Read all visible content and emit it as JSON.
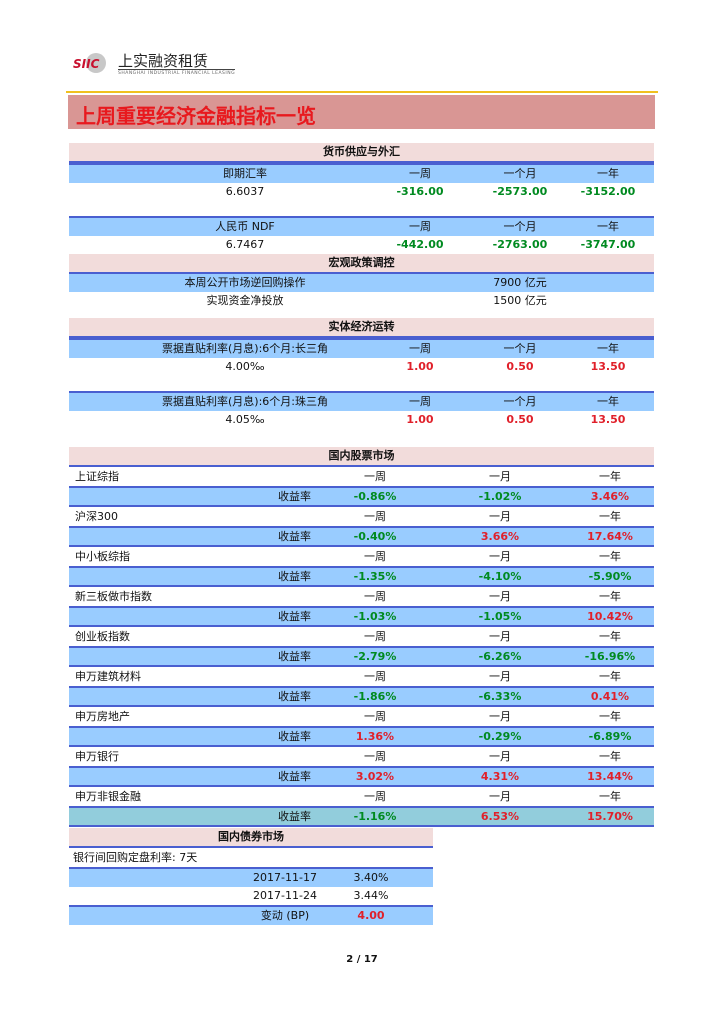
{
  "logo": {
    "mark": "SIIC",
    "name_cn": "上实融资租赁",
    "name_en": "SHANGHAI INDUSTRIAL FINANCIAL LEASING"
  },
  "title": "上周重要经济金融指标一览",
  "colors": {
    "banner": "#d99694",
    "title": "#e8191e",
    "section_header": "#f2dcdb",
    "row_blue": "#99ccff",
    "last_row": "#92cddc",
    "up": "#e0202a",
    "down": "#008a20"
  },
  "money": {
    "header": "货币供应与外汇",
    "blocks": [
      {
        "label": "即期汇率",
        "cols": [
          "一周",
          "一个月",
          "一年"
        ],
        "value": "6.6037",
        "changes": [
          "-316.00",
          "-2573.00",
          "-3152.00"
        ],
        "colors": [
          "g",
          "g",
          "g"
        ]
      },
      {
        "label": "人民币 NDF",
        "cols": [
          "一周",
          "一个月",
          "一年"
        ],
        "value": "6.7467",
        "changes": [
          "-442.00",
          "-2763.00",
          "-3747.00"
        ],
        "colors": [
          "g",
          "g",
          "g"
        ]
      }
    ]
  },
  "macro": {
    "header": "宏观政策调控",
    "rows": [
      {
        "label": "本周公开市场逆回购操作",
        "value": "7900 亿元"
      },
      {
        "label": "实现资金净投放",
        "value": "1500 亿元"
      }
    ]
  },
  "real": {
    "header": "实体经济运转",
    "blocks": [
      {
        "label": "票据直贴利率(月息):6个月:长三角",
        "cols": [
          "一周",
          "一个月",
          "一年"
        ],
        "value": "4.00‰",
        "changes": [
          "1.00",
          "0.50",
          "13.50"
        ],
        "colors": [
          "r",
          "r",
          "r"
        ]
      },
      {
        "label": "票据直贴利率(月息):6个月:珠三角",
        "cols": [
          "一周",
          "一个月",
          "一年"
        ],
        "value": "4.05‰",
        "changes": [
          "1.00",
          "0.50",
          "13.50"
        ],
        "colors": [
          "r",
          "r",
          "r"
        ]
      }
    ]
  },
  "stocks": {
    "header": "国内股票市场",
    "cols": [
      "一周",
      "一月",
      "一年"
    ],
    "rate_label": "收益率",
    "rows": [
      {
        "name": "上证综指",
        "values": [
          "-0.86%",
          "-1.02%",
          "3.46%"
        ],
        "colors": [
          "g",
          "g",
          "r"
        ]
      },
      {
        "name": "沪深300",
        "values": [
          "-0.40%",
          "3.66%",
          "17.64%"
        ],
        "colors": [
          "g",
          "r",
          "r"
        ]
      },
      {
        "name": "中小板综指",
        "values": [
          "-1.35%",
          "-4.10%",
          "-5.90%"
        ],
        "colors": [
          "g",
          "g",
          "g"
        ]
      },
      {
        "name": "新三板做市指数",
        "values": [
          "-1.03%",
          "-1.05%",
          "10.42%"
        ],
        "colors": [
          "g",
          "g",
          "r"
        ]
      },
      {
        "name": "创业板指数",
        "values": [
          "-2.79%",
          "-6.26%",
          "-16.96%"
        ],
        "colors": [
          "g",
          "g",
          "g"
        ]
      },
      {
        "name": "申万建筑材料",
        "values": [
          "-1.86%",
          "-6.33%",
          "0.41%"
        ],
        "colors": [
          "g",
          "g",
          "r"
        ]
      },
      {
        "name": "申万房地产",
        "values": [
          "1.36%",
          "-0.29%",
          "-6.89%"
        ],
        "colors": [
          "r",
          "g",
          "g"
        ]
      },
      {
        "name": "申万银行",
        "values": [
          "3.02%",
          "4.31%",
          "13.44%"
        ],
        "colors": [
          "r",
          "r",
          "r"
        ]
      },
      {
        "name": "申万非银金融",
        "values": [
          "-1.16%",
          "6.53%",
          "15.70%"
        ],
        "colors": [
          "g",
          "r",
          "r"
        ]
      }
    ]
  },
  "bonds": {
    "header": "国内债券市场",
    "subtitle": "银行间回购定盘利率: 7天",
    "rows": [
      {
        "label": "2017-11-17",
        "value": "3.40%"
      },
      {
        "label": "2017-11-24",
        "value": "3.44%"
      },
      {
        "label": "变动 (BP)",
        "value": "4.00",
        "color": "r"
      }
    ]
  },
  "page": "2 / 17"
}
